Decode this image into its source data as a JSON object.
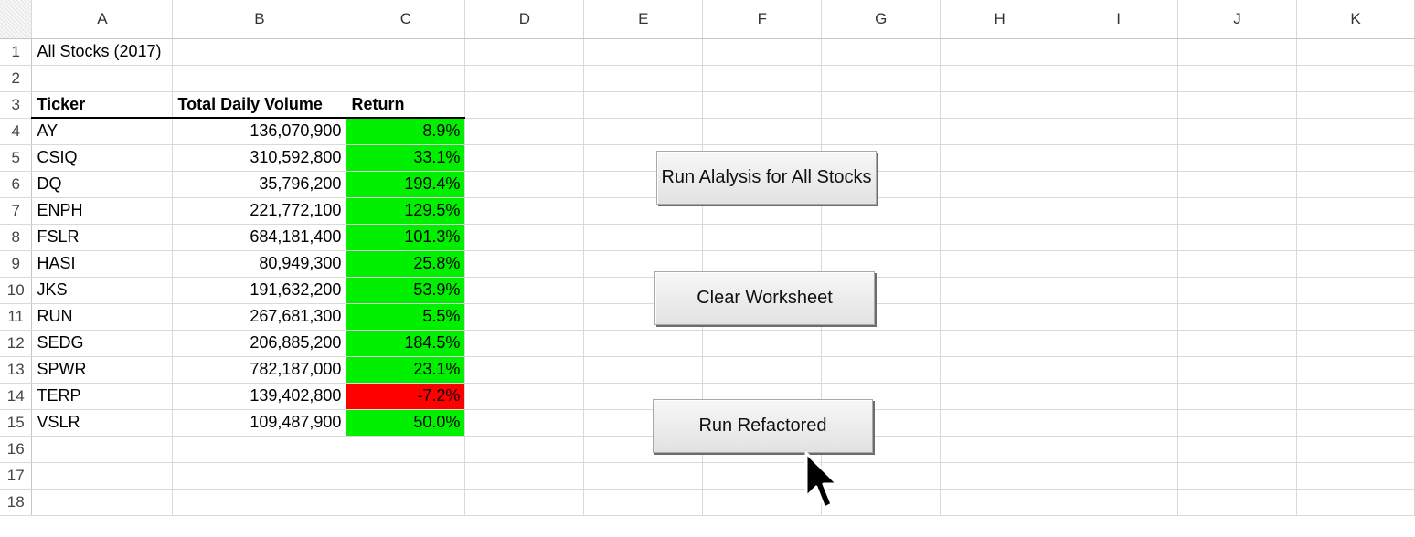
{
  "columns": [
    "A",
    "B",
    "C",
    "D",
    "E",
    "F",
    "G",
    "H",
    "I",
    "J",
    "K"
  ],
  "rows": [
    {
      "num": "1",
      "a": "All Stocks (2017)",
      "b": "",
      "c": ""
    },
    {
      "num": "2",
      "a": "",
      "b": "",
      "c": ""
    },
    {
      "num": "3",
      "a": "Ticker",
      "b": "Total Daily Volume",
      "c": "Return"
    },
    {
      "num": "4",
      "a": "AY",
      "b": "136,070,900",
      "c": "8.9%"
    },
    {
      "num": "5",
      "a": "CSIQ",
      "b": "310,592,800",
      "c": "33.1%"
    },
    {
      "num": "6",
      "a": "DQ",
      "b": "35,796,200",
      "c": "199.4%"
    },
    {
      "num": "7",
      "a": "ENPH",
      "b": "221,772,100",
      "c": "129.5%"
    },
    {
      "num": "8",
      "a": "FSLR",
      "b": "684,181,400",
      "c": "101.3%"
    },
    {
      "num": "9",
      "a": "HASI",
      "b": "80,949,300",
      "c": "25.8%"
    },
    {
      "num": "10",
      "a": "JKS",
      "b": "191,632,200",
      "c": "53.9%"
    },
    {
      "num": "11",
      "a": "RUN",
      "b": "267,681,300",
      "c": "5.5%"
    },
    {
      "num": "12",
      "a": "SEDG",
      "b": "206,885,200",
      "c": "184.5%"
    },
    {
      "num": "13",
      "a": "SPWR",
      "b": "782,187,000",
      "c": "23.1%"
    },
    {
      "num": "14",
      "a": "TERP",
      "b": "139,402,800",
      "c": "-7.2%"
    },
    {
      "num": "15",
      "a": "VSLR",
      "b": "109,487,900",
      "c": "50.0%"
    },
    {
      "num": "16",
      "a": "",
      "b": "",
      "c": ""
    },
    {
      "num": "17",
      "a": "",
      "b": "",
      "c": ""
    },
    {
      "num": "18",
      "a": "",
      "b": "",
      "c": ""
    }
  ],
  "buttons": {
    "run_all": "Run Alalysis for All Stocks",
    "clear": "Clear Worksheet",
    "refactored": "Run Refactored"
  },
  "colors": {
    "positive_fill": "#00f000",
    "negative_fill": "#ff0000"
  },
  "icons": {
    "cursor": "mouse-pointer-icon"
  }
}
